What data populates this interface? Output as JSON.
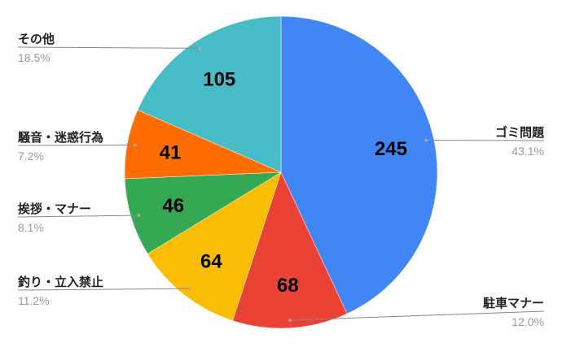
{
  "chart_data": {
    "type": "pie",
    "start": "top",
    "direction": "clockwise",
    "legend": "labels with leader lines",
    "slices": [
      {
        "label": "ゴミ問題",
        "value": 245,
        "percent": "43.1%",
        "color": "#4285F4",
        "side": "right"
      },
      {
        "label": "駐車マナー",
        "value": 68,
        "percent": "12.0%",
        "color": "#EA4335",
        "side": "right"
      },
      {
        "label": "釣り・立入禁止",
        "value": 64,
        "percent": "11.2%",
        "color": "#FBBC04",
        "side": "left"
      },
      {
        "label": "挨拶・マナー",
        "value": 46,
        "percent": "8.1%",
        "color": "#34A853",
        "side": "left"
      },
      {
        "label": "騒音・迷惑行為",
        "value": 41,
        "percent": "7.2%",
        "color": "#FF6D01",
        "side": "left"
      },
      {
        "label": "その他",
        "value": 105,
        "percent": "18.5%",
        "color": "#46BDC6",
        "side": "left"
      }
    ]
  }
}
